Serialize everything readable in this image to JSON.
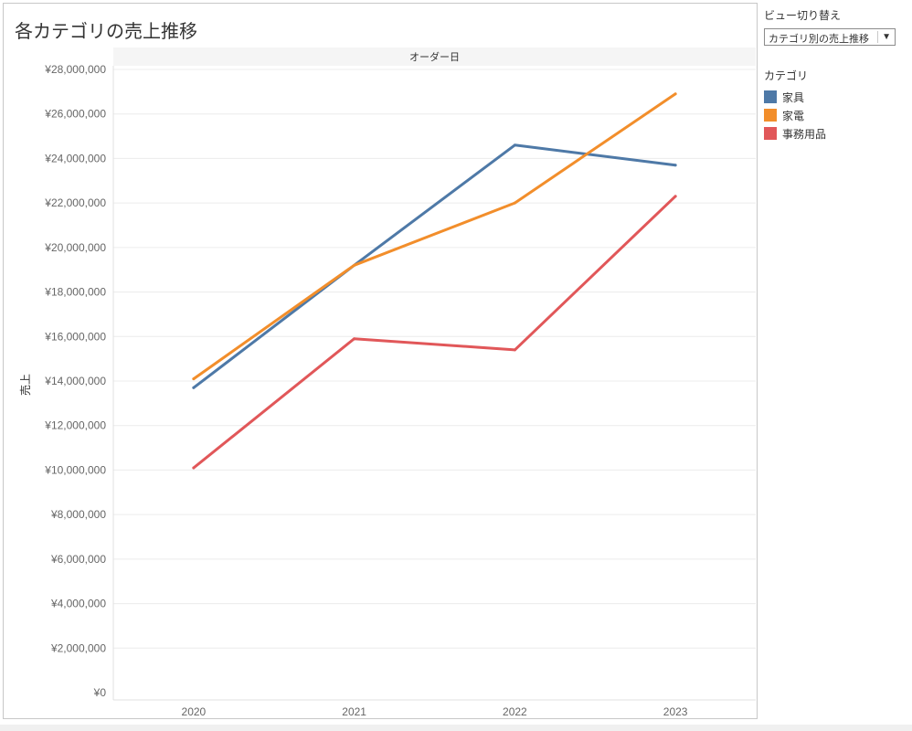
{
  "viz": {
    "title": "各カテゴリの売上推移"
  },
  "parameter": {
    "label": "ビュー切り替え",
    "selected": "カテゴリ別の売上推移",
    "arrow_icon": "dropdown-arrow-icon"
  },
  "legend": {
    "title": "カテゴリ",
    "items": [
      {
        "label": "家具",
        "color": "#4e79a7"
      },
      {
        "label": "家電",
        "color": "#f28e2b"
      },
      {
        "label": "事務用品",
        "color": "#e15759"
      }
    ]
  },
  "chart_data": {
    "type": "line",
    "title": "",
    "column_header": "オーダー日",
    "xlabel": "",
    "ylabel": "売上",
    "categories": [
      "2020",
      "2021",
      "2022",
      "2023"
    ],
    "y_ticks": [
      "¥0",
      "¥2,000,000",
      "¥4,000,000",
      "¥6,000,000",
      "¥8,000,000",
      "¥10,000,000",
      "¥12,000,000",
      "¥14,000,000",
      "¥16,000,000",
      "¥18,000,000",
      "¥20,000,000",
      "¥22,000,000",
      "¥24,000,000",
      "¥26,000,000",
      "¥28,000,000"
    ],
    "ylim": [
      0,
      28000000
    ],
    "grid": true,
    "legend_position": "right",
    "series": [
      {
        "name": "家具",
        "color": "#4e79a7",
        "values": [
          13700000,
          19200000,
          24600000,
          23700000
        ]
      },
      {
        "name": "家電",
        "color": "#f28e2b",
        "values": [
          14100000,
          19200000,
          22000000,
          26900000
        ]
      },
      {
        "name": "事務用品",
        "color": "#e15759",
        "values": [
          10100000,
          15900000,
          15400000,
          22300000
        ]
      }
    ]
  }
}
